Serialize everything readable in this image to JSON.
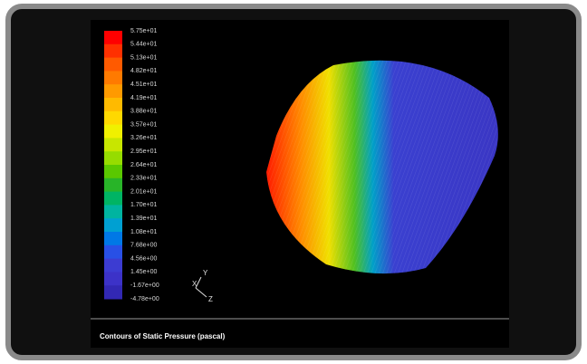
{
  "colorbar": {
    "labels": [
      "5.75e+01",
      "5.44e+01",
      "5.13e+01",
      "4.82e+01",
      "4.51e+01",
      "4.19e+01",
      "3.88e+01",
      "3.57e+01",
      "3.26e+01",
      "2.95e+01",
      "2.64e+01",
      "2.33e+01",
      "2.01e+01",
      "1.70e+01",
      "1.39e+01",
      "1.08e+01",
      "7.68e+00",
      "4.56e+00",
      "1.45e+00",
      "-1.67e+00",
      "-4.78e+00"
    ],
    "colors": [
      "#ff0000",
      "#ff3000",
      "#ff5a00",
      "#ff7a00",
      "#ff9a00",
      "#ffba00",
      "#ffd800",
      "#f0f000",
      "#c8e600",
      "#96dc00",
      "#5ac800",
      "#28b428",
      "#00b464",
      "#00b4a0",
      "#00a0d2",
      "#0078e6",
      "#2850e6",
      "#3c3cd2",
      "#3c32c8",
      "#3228b4"
    ]
  },
  "triad": {
    "y": "Y",
    "x": "X",
    "z": "Z"
  },
  "caption": "Contours of Static Pressure (pascal)"
}
